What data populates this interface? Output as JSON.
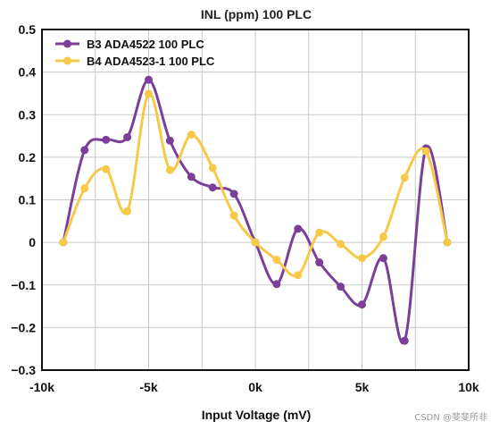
{
  "chart_data": {
    "type": "line",
    "title": "INL (ppm) 100 PLC",
    "xlabel": "Input Voltage (mV)",
    "ylabel": "",
    "xlim": [
      -10000,
      10000
    ],
    "ylim": [
      -0.3,
      0.5
    ],
    "x_ticks": [
      -10000,
      -5000,
      0,
      5000,
      10000
    ],
    "x_tick_labels": [
      "-10k",
      "-5k",
      "0k",
      "5k",
      "10k"
    ],
    "y_ticks": [
      0.5,
      0.4,
      0.3,
      0.2,
      0.1,
      0,
      -0.1,
      -0.2,
      -0.3
    ],
    "y_tick_labels": [
      "0.5",
      "0.4",
      "0.3",
      "0.2",
      "0.1",
      "0",
      "−0.1",
      "−0.2",
      "−0.3"
    ],
    "grid": true,
    "legend_position": "top-left",
    "series": [
      {
        "name": "B3 ADA4522 100 PLC",
        "color": "#7b3f98",
        "points": [
          [
            -9000,
            0.0
          ],
          [
            -8000,
            0.217
          ],
          [
            -7000,
            0.241
          ],
          [
            -6000,
            0.247
          ],
          [
            -5000,
            0.382
          ],
          [
            -4000,
            0.239
          ],
          [
            -3000,
            0.154
          ],
          [
            -2000,
            0.129
          ],
          [
            -1000,
            0.114
          ],
          [
            0,
            0.0
          ],
          [
            1000,
            -0.098
          ],
          [
            2000,
            0.032
          ],
          [
            3000,
            -0.047
          ],
          [
            4000,
            -0.104
          ],
          [
            5000,
            -0.146
          ],
          [
            6000,
            -0.037
          ],
          [
            7000,
            -0.231
          ],
          [
            8000,
            0.221
          ],
          [
            9000,
            0.0
          ]
        ]
      },
      {
        "name": "B4 ADA4523-1 100 PLC",
        "color": "#f7c948",
        "points": [
          [
            -9000,
            0.0
          ],
          [
            -8000,
            0.127
          ],
          [
            -7000,
            0.172
          ],
          [
            -6000,
            0.073
          ],
          [
            -5000,
            0.349
          ],
          [
            -4000,
            0.17
          ],
          [
            -3000,
            0.253
          ],
          [
            -2000,
            0.175
          ],
          [
            -1000,
            0.063
          ],
          [
            0,
            0.0
          ],
          [
            1000,
            -0.041
          ],
          [
            2000,
            -0.077
          ],
          [
            3000,
            0.023
          ],
          [
            4000,
            -0.004
          ],
          [
            5000,
            -0.037
          ],
          [
            6000,
            0.013
          ],
          [
            7000,
            0.152
          ],
          [
            8000,
            0.214
          ],
          [
            9000,
            0.0
          ]
        ]
      }
    ]
  },
  "watermark": "CSDN @斐斐所非"
}
